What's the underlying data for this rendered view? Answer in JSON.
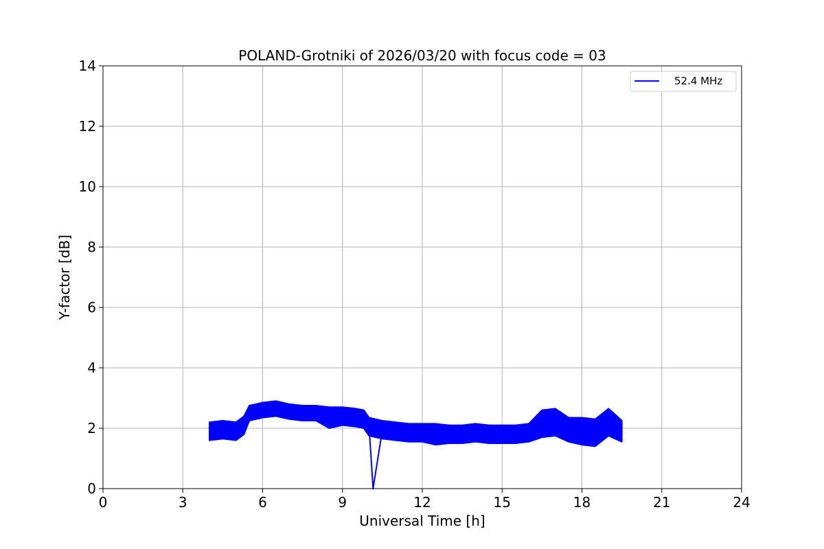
{
  "chart_data": {
    "type": "line",
    "title": "POLAND-Grotniki of 2026/03/20 with focus code = 03",
    "xlabel": "Universal Time [h]",
    "ylabel": "Y-factor [dB]",
    "xlim": [
      0,
      24
    ],
    "ylim": [
      0,
      14
    ],
    "xticks": [
      0,
      3,
      6,
      9,
      12,
      15,
      18,
      21,
      24
    ],
    "yticks": [
      0,
      2,
      4,
      6,
      8,
      10,
      12,
      14
    ],
    "grid": true,
    "legend_position": "top-right",
    "series": [
      {
        "name": "52.4 MHz",
        "color": "#0000ff",
        "x": [
          4.0,
          4.5,
          5.0,
          5.3,
          5.5,
          6.0,
          6.5,
          7.0,
          7.5,
          8.0,
          8.5,
          9.0,
          9.5,
          9.8,
          10.0,
          10.15,
          10.5,
          11.0,
          11.5,
          12.0,
          12.5,
          13.0,
          13.5,
          14.0,
          14.5,
          15.0,
          15.5,
          16.0,
          16.5,
          17.0,
          17.5,
          18.0,
          18.5,
          19.0,
          19.5
        ],
        "y": [
          1.9,
          1.95,
          1.9,
          2.1,
          2.5,
          2.6,
          2.65,
          2.55,
          2.5,
          2.5,
          2.35,
          2.4,
          2.35,
          2.3,
          2.05,
          0.0,
          1.95,
          1.9,
          1.85,
          1.85,
          1.8,
          1.8,
          1.8,
          1.85,
          1.8,
          1.8,
          1.8,
          1.85,
          2.15,
          2.2,
          1.95,
          1.9,
          1.85,
          2.2,
          1.9
        ],
        "band_half_width": [
          0.3,
          0.3,
          0.3,
          0.3,
          0.25,
          0.25,
          0.25,
          0.25,
          0.25,
          0.25,
          0.35,
          0.3,
          0.3,
          0.3,
          0.3,
          0.0,
          0.3,
          0.3,
          0.3,
          0.3,
          0.35,
          0.3,
          0.3,
          0.3,
          0.3,
          0.3,
          0.3,
          0.3,
          0.45,
          0.45,
          0.4,
          0.45,
          0.45,
          0.45,
          0.35
        ]
      }
    ]
  }
}
